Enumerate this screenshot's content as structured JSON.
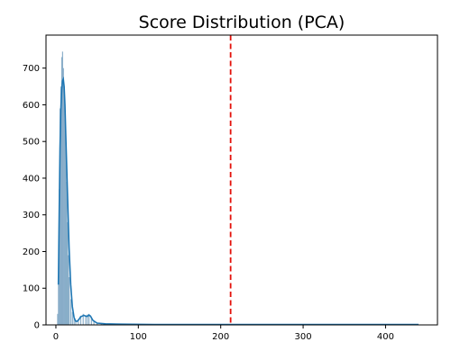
{
  "chart_data": {
    "type": "bar",
    "title": "Score Distribution (PCA)",
    "xlabel": "",
    "ylabel": "",
    "xlim": [
      -12,
      463
    ],
    "ylim": [
      0,
      790
    ],
    "xticks": [
      0,
      100,
      200,
      300,
      400
    ],
    "yticks": [
      0,
      100,
      200,
      300,
      400,
      500,
      600,
      700
    ],
    "grid": false,
    "legend": "none",
    "threshold": {
      "x": 212,
      "color": "#e3120b",
      "style": "dashed"
    },
    "colors": {
      "bars": "#7aa3c2",
      "kde": "#1f77b4"
    },
    "histogram": {
      "x": [
        2,
        3,
        4,
        5,
        6,
        7,
        8,
        9,
        10,
        11,
        12,
        13,
        14,
        15,
        16,
        18,
        20,
        22,
        24,
        27,
        30,
        33,
        36,
        38,
        40,
        43,
        46,
        50,
        55,
        60,
        70,
        100,
        200,
        300,
        440
      ],
      "values": [
        30,
        120,
        370,
        590,
        650,
        730,
        745,
        700,
        650,
        560,
        480,
        390,
        280,
        190,
        130,
        70,
        35,
        18,
        12,
        15,
        25,
        30,
        25,
        28,
        30,
        18,
        10,
        6,
        4,
        3,
        2,
        1,
        1,
        1,
        1
      ]
    },
    "kde": {
      "x": [
        3,
        4,
        5,
        6,
        7,
        8,
        9,
        10,
        11,
        12,
        14,
        16,
        18,
        20,
        22,
        24,
        26,
        28,
        30,
        32,
        34,
        36,
        38,
        40,
        42,
        45,
        50,
        60,
        80,
        120,
        200,
        300,
        400,
        440
      ],
      "values": [
        110,
        300,
        480,
        585,
        640,
        665,
        670,
        650,
        600,
        520,
        360,
        210,
        110,
        50,
        20,
        10,
        10,
        15,
        22,
        24,
        26,
        24,
        23,
        27,
        24,
        12,
        5,
        3,
        2,
        1,
        1,
        1,
        1,
        1
      ]
    }
  }
}
